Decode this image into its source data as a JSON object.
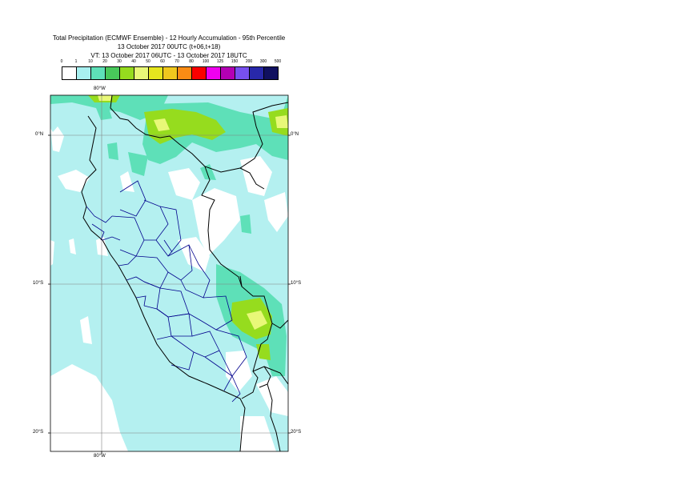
{
  "header": {
    "title_line1": "Total Precipitation (ECMWF Ensemble) - 12 Hourly Accumulation - 95th Percentile",
    "title_line2": "13 October 2017 00UTC (t+06,t+18)",
    "title_line3": "VT: 13 October 2017 06UTC - 13 October 2017 18UTC"
  },
  "legend": {
    "labels": [
      "0",
      "1",
      "10",
      "20",
      "30",
      "40",
      "50",
      "60",
      "70",
      "80",
      "100",
      "125",
      "150",
      "200",
      "300",
      "500"
    ],
    "colors": [
      "#ffffff",
      "#a8f0f0",
      "#5ee0b8",
      "#48c85a",
      "#96dc1e",
      "#e8f878",
      "#e6e61e",
      "#f0c81e",
      "#fa8c14",
      "#fa0000",
      "#f000f0",
      "#b400b4",
      "#7850f0",
      "#2828aa",
      "#101060"
    ]
  },
  "map": {
    "lat_labels": {
      "north": "0°N",
      "south10": "10°S",
      "south20": "20°S"
    },
    "lon_labels": {
      "top": "80°W",
      "bottom": "80°W"
    },
    "colors": {
      "ocean": "#b4f0f0",
      "land_dry": "#ffffff",
      "precip_low": "#a8f0f0",
      "precip_mid": "#5ee0b8",
      "precip_high": "#96dc1e",
      "precip_peak": "#e8f878",
      "border_national": "#000000",
      "border_regional": "#00008c",
      "grid": "#808080"
    }
  }
}
